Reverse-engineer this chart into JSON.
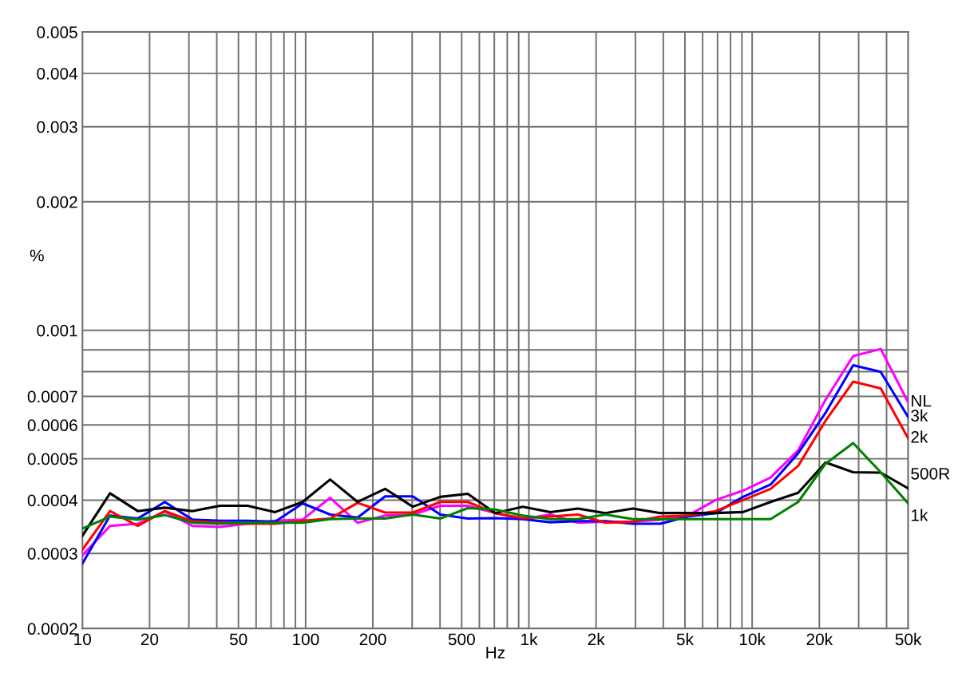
{
  "chart_data": {
    "type": "line",
    "xlabel": "Hz",
    "ylabel": "%",
    "x": [
      10,
      13.3,
      17.7,
      23.4,
      31.1,
      41.4,
      54.9,
      73,
      96.9,
      128.8,
      171,
      227,
      302,
      401,
      532,
      707,
      939,
      1248,
      1657,
      2202,
      2924,
      3884,
      5160,
      6855,
      9104,
      12096,
      16070,
      21340,
      28350,
      37650,
      50000
    ],
    "series": [
      {
        "name": "NL",
        "color": "#ff00ff",
        "values": [
          0.000297,
          0.000348,
          0.000352,
          0.000376,
          0.000348,
          0.000346,
          0.000352,
          0.000358,
          0.00036,
          0.000405,
          0.000354,
          0.000368,
          0.00037,
          0.000388,
          0.000388,
          0.000373,
          0.000361,
          0.00037,
          0.000354,
          0.000356,
          0.000356,
          0.00036,
          0.000368,
          0.0004,
          0.000421,
          0.000452,
          0.000523,
          0.000688,
          0.00087,
          0.000904,
          0.000678
        ]
      },
      {
        "name": "3k",
        "color": "#0000ff",
        "values": [
          0.000284,
          0.000368,
          0.000362,
          0.000396,
          0.00036,
          0.000358,
          0.000358,
          0.000356,
          0.000393,
          0.00037,
          0.000364,
          0.000408,
          0.000408,
          0.00037,
          0.000362,
          0.000363,
          0.000361,
          0.000355,
          0.000357,
          0.000357,
          0.000352,
          0.000352,
          0.000366,
          0.000373,
          0.000407,
          0.000435,
          0.000515,
          0.000641,
          0.000828,
          0.000799,
          0.000626
        ]
      },
      {
        "name": "2k",
        "color": "#ff0000",
        "values": [
          0.000306,
          0.000377,
          0.000348,
          0.000377,
          0.000357,
          0.000354,
          0.000352,
          0.000352,
          0.000358,
          0.000362,
          0.000394,
          0.000374,
          0.000374,
          0.000396,
          0.000396,
          0.000373,
          0.000363,
          0.000366,
          0.00037,
          0.000354,
          0.000356,
          0.000366,
          0.000368,
          0.000377,
          0.0004,
          0.000425,
          0.000481,
          0.000614,
          0.000758,
          0.000731,
          0.000558
        ]
      },
      {
        "name": "500R",
        "color": "#000000",
        "values": [
          0.00033,
          0.000415,
          0.000377,
          0.000384,
          0.000377,
          0.000388,
          0.000388,
          0.000375,
          0.000396,
          0.000447,
          0.000396,
          0.000425,
          0.000386,
          0.000407,
          0.000414,
          0.000373,
          0.000386,
          0.000375,
          0.000382,
          0.000373,
          0.000382,
          0.000373,
          0.000373,
          0.000373,
          0.000375,
          0.000396,
          0.000416,
          0.00049,
          0.000465,
          0.000464,
          0.000426
        ]
      },
      {
        "name": "1k",
        "color": "#008000",
        "values": [
          0.000343,
          0.000366,
          0.00036,
          0.000369,
          0.000354,
          0.000352,
          0.000354,
          0.000354,
          0.000354,
          0.000361,
          0.000362,
          0.000362,
          0.00037,
          0.000362,
          0.000383,
          0.00038,
          0.000368,
          0.000361,
          0.000361,
          0.00037,
          0.000361,
          0.000361,
          0.000361,
          0.000361,
          0.000361,
          0.000361,
          0.000396,
          0.000487,
          0.000544,
          0.000465,
          0.000393
        ]
      }
    ],
    "log": "xy",
    "grid": true,
    "legend": false,
    "marker": "none",
    "line_style": "solid",
    "xlim": [
      10,
      50000
    ],
    "ylim": [
      0.0002,
      0.005
    ],
    "xticks": [
      10,
      20,
      {
        "value": 30,
        "label": null
      },
      {
        "value": 40,
        "label": null
      },
      50,
      {
        "value": 60,
        "label": null
      },
      {
        "value": 70,
        "label": null
      },
      {
        "value": 80,
        "label": null
      },
      {
        "value": 90,
        "label": null
      },
      100,
      200,
      {
        "value": 300,
        "label": null
      },
      {
        "value": 400,
        "label": null
      },
      500,
      {
        "value": 600,
        "label": null
      },
      {
        "value": 700,
        "label": null
      },
      {
        "value": 800,
        "label": null
      },
      {
        "value": 900,
        "label": null
      },
      {
        "value": 1000,
        "label": "1k"
      },
      {
        "value": 2000,
        "label": "2k"
      },
      {
        "value": 3000,
        "label": null
      },
      {
        "value": 4000,
        "label": null
      },
      {
        "value": 5000,
        "label": "5k"
      },
      {
        "value": 6000,
        "label": null
      },
      {
        "value": 7000,
        "label": null
      },
      {
        "value": 8000,
        "label": null
      },
      {
        "value": 9000,
        "label": null
      },
      {
        "value": 10000,
        "label": "10k"
      },
      {
        "value": 20000,
        "label": "20k"
      },
      {
        "value": 30000,
        "label": null
      },
      {
        "value": 40000,
        "label": null
      },
      {
        "value": 50000,
        "label": "50k"
      }
    ],
    "yticks": [
      0.0002,
      0.0003,
      0.0004,
      0.0005,
      0.0006,
      0.0007,
      {
        "value": 0.0008,
        "label": null
      },
      {
        "value": 0.0009,
        "label": null
      },
      0.001,
      0.002,
      0.003,
      0.004,
      0.005
    ]
  }
}
